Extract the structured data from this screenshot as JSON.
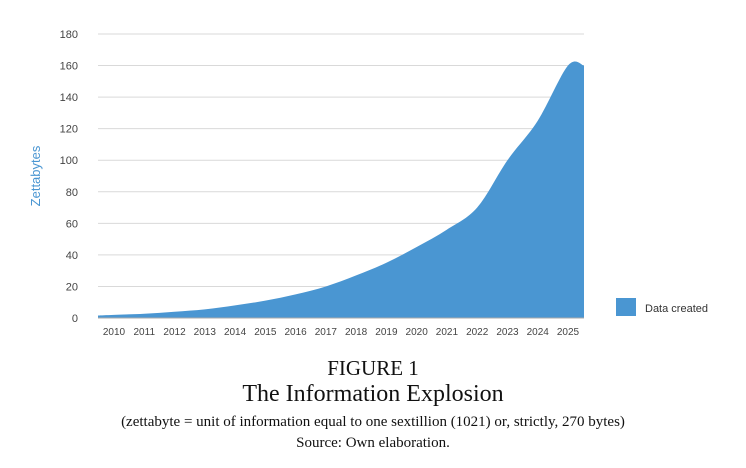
{
  "caption": {
    "figure_number": "FIGURE 1",
    "title": "The Information Explosion",
    "note": "(zettabyte = unit of information equal to one sextillion (1021) or, strictly, 270 bytes)",
    "source": "Source: Own elaboration."
  },
  "chart_data": {
    "type": "area",
    "title": "",
    "xlabel": "",
    "ylabel": "Zettabytes",
    "ylim": [
      0,
      180
    ],
    "yticks": [
      0,
      20,
      40,
      60,
      80,
      100,
      120,
      140,
      160,
      180
    ],
    "categories": [
      "2010",
      "2011",
      "2012",
      "2013",
      "2014",
      "2015",
      "2016",
      "2017",
      "2018",
      "2019",
      "2020",
      "2021",
      "2022",
      "2023",
      "2024",
      "2025"
    ],
    "series": [
      {
        "name": "Data created",
        "values": [
          2,
          2.7,
          4,
          5.5,
          8,
          11,
          15,
          20,
          27,
          35,
          45,
          56,
          70,
          100,
          125,
          160
        ]
      }
    ],
    "grid": true,
    "legend": "right",
    "colors": {
      "area": "#4a96d2",
      "axis_label": "#4a96d2",
      "grid": "#d9d9d9",
      "axis": "#aaaaaa"
    }
  }
}
